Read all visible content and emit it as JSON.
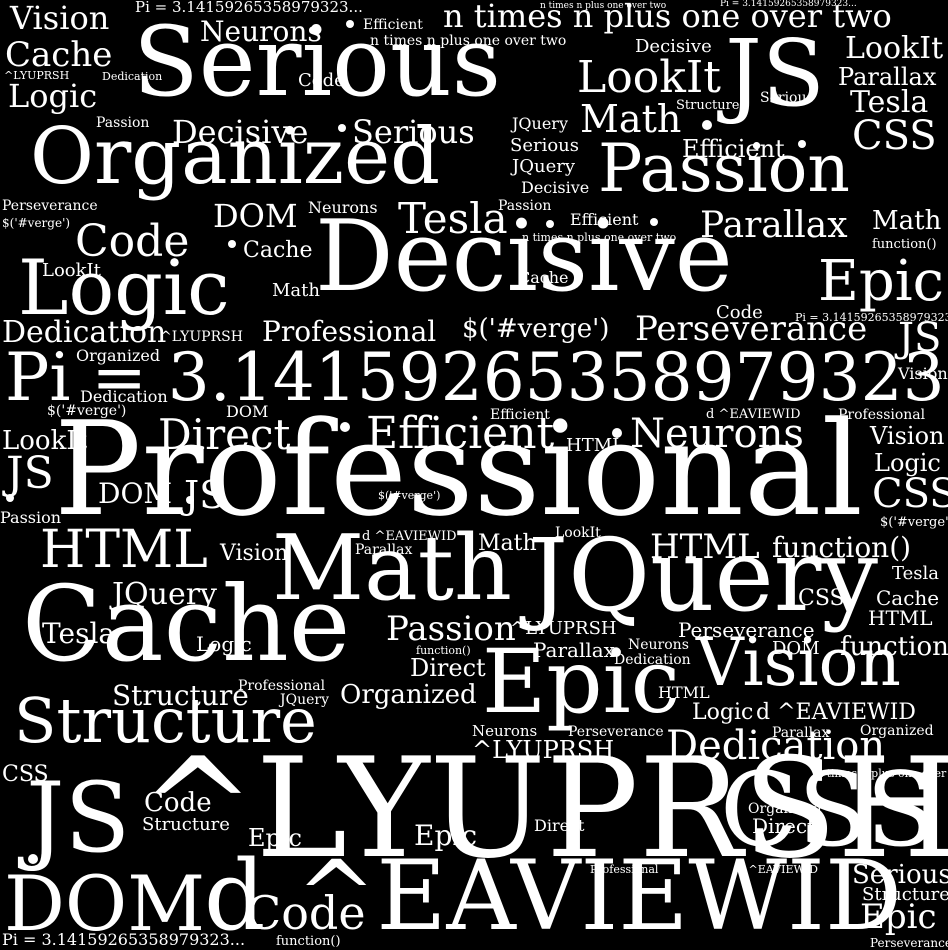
{
  "colors": {
    "background": "#000000",
    "text": "#ffffff"
  },
  "words": [
    "Vision",
    "Pi = 3.14159265358979323...",
    "n times n plus one over two",
    "n times n plus one over two",
    "Pi = 3.14159265358979323...",
    "Cache",
    "Serious",
    "Neurons",
    "Efficient",
    "n times n plus one over two",
    "Decisive",
    "JS",
    "LookIt",
    "Parallax",
    "^LYUPRSH",
    "Dedication",
    "Logic",
    "Code",
    "LookIt",
    "Tesla",
    "Math",
    "Structure",
    "Serious",
    "Passion",
    "Decisive",
    "Serious",
    "JQuery",
    "CSS",
    "Organized",
    "Serious",
    "Efficient",
    "JQuery",
    "Passion",
    "Decisive",
    "Perseverance",
    "Passion",
    "$('#verge')",
    "DOM",
    "Neurons",
    "Tesla",
    "Efficient",
    "Parallax",
    "Math",
    "Code",
    "n times n plus one over two",
    "function()",
    "Cache",
    "Decisive",
    "Logic",
    "LookIt",
    "Cache",
    "Epic",
    "Math",
    "Code",
    "Pi = 3.14159265358979323...",
    "Dedication",
    "^LYUPRSH",
    "Professional",
    "$('#verge')",
    "Perseverance",
    "JS",
    "Organized",
    "Pi = 3.14159265358979323...",
    "Vision",
    "Dedication",
    "$('#verge')",
    "DOM",
    "Efficient",
    "d ^EAVIEWID",
    "Professional",
    "LookIt",
    "Direct",
    "Efficient",
    "HTML",
    "Neurons",
    "Vision",
    "Professional",
    "Logic",
    "JS",
    "DOM",
    "JS",
    "$('#verge')",
    "CSS",
    "Passion",
    "$('#verge')",
    "d ^EAVIEWID",
    "LookIt",
    "HTML",
    "Parallax",
    "Math",
    "HTML",
    "function()",
    "Vision",
    "Math",
    "JQuery",
    "Tesla",
    "JQuery",
    "CSS",
    "Cache",
    "Cache",
    "HTML",
    "Tesla",
    "Passion",
    "^LYUPRSH",
    "Perseverance",
    "Logic",
    "function()",
    "Neurons",
    "function()",
    "Parallax",
    "Dedication",
    "DOM",
    "Direct",
    "Vision",
    "Structure",
    "Professional",
    "Organized",
    "Epic",
    "JQuery",
    "HTML",
    "Logic",
    "d ^EAVIEWID",
    "Structure",
    "Neurons",
    "Perseverance",
    "Parallax",
    "Organized",
    "^LYUPRSH",
    "Dedication",
    "CSS",
    "n times n plus one over two",
    "JS",
    "Code",
    "^LYUPRSH",
    "CSS",
    "Organized",
    "Structure",
    "Epic",
    "Epic",
    "Direct",
    "Direct",
    "Professional",
    "d ^EAVIEWID",
    "Serious",
    "DOM",
    "d ^EAVIEWID",
    "Code",
    "Structure",
    "Epic",
    "Pi = 3.14159265358979323...",
    "function()",
    "Perseverance"
  ]
}
